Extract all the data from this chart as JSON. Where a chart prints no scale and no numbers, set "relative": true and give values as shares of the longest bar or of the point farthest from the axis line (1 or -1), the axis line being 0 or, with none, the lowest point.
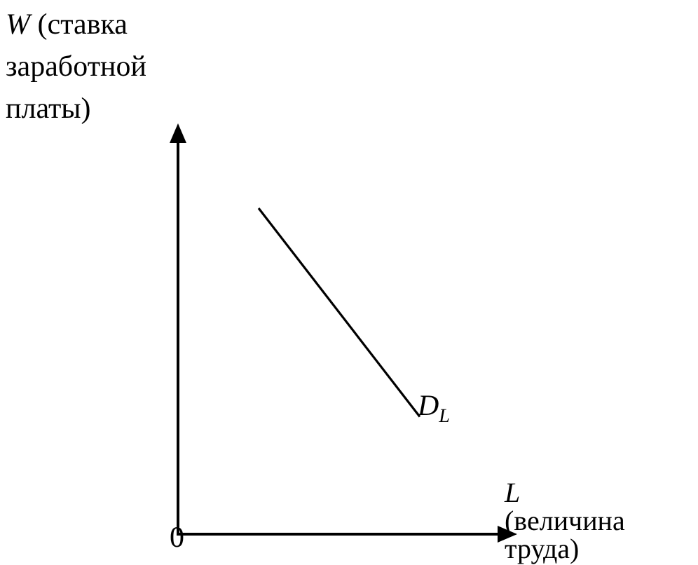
{
  "chart_data": {
    "type": "line",
    "ylabel": "W (ставка заработной платы)",
    "xlabel": "L (величина труда)",
    "categories": [
      null,
      null
    ],
    "series": [
      {
        "color": "#000000",
        "values": [
          1,
          0.36
        ]
      }
    ],
    "relative": true,
    "grid": false,
    "legend": false,
    "marker": "none",
    "line_style": "solid",
    "tick_labels": false,
    "annotations": [
      "D$_{L}$",
      "0"
    ]
  }
}
